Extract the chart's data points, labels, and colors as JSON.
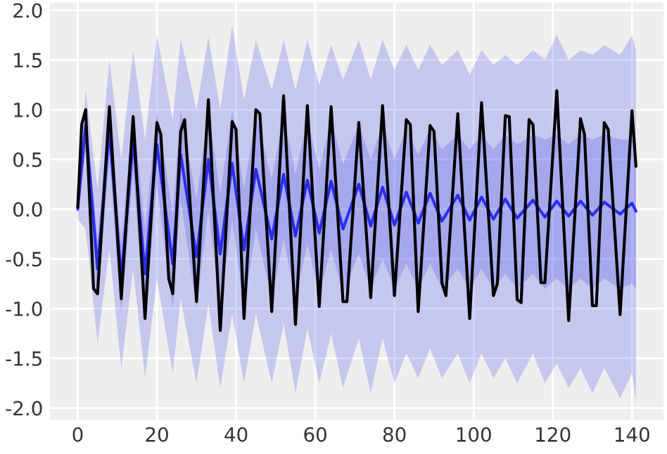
{
  "chart_data": {
    "type": "line",
    "xlim": [
      -7,
      148
    ],
    "ylim": [
      -2.12,
      2.08
    ],
    "xticks": [
      0,
      20,
      40,
      60,
      80,
      100,
      120,
      140
    ],
    "yticks": [
      {
        "value": -2,
        "label": "-2.0"
      },
      {
        "value": -1.5,
        "label": "-1.5"
      },
      {
        "value": -1,
        "label": "-1.0"
      },
      {
        "value": -0.5,
        "label": "-0.5"
      },
      {
        "value": 0,
        "label": "0.0"
      },
      {
        "value": 0.5,
        "label": "0.5"
      },
      {
        "value": 1,
        "label": "1.0"
      },
      {
        "value": 1.5,
        "label": "1.5"
      },
      {
        "value": 2,
        "label": "2.0"
      }
    ],
    "grid": true,
    "legend": false,
    "marker": "none",
    "line_style": "solid",
    "series": [
      {
        "color": "#2a2eec",
        "x": [
          0,
          2,
          5,
          8,
          11,
          14,
          17,
          20,
          24,
          26,
          30,
          33,
          36,
          39,
          42,
          45,
          49,
          52,
          55,
          58,
          61,
          64,
          67,
          71,
          74,
          77,
          80,
          83,
          86,
          89,
          92,
          96,
          99,
          102,
          105,
          108,
          111,
          115,
          118,
          121,
          124,
          127,
          130,
          133,
          137,
          140,
          141
        ],
        "values": [
          0.0,
          0.85,
          -0.6,
          0.8,
          -0.7,
          0.7,
          -0.65,
          0.65,
          -0.55,
          0.55,
          -0.48,
          0.5,
          -0.45,
          0.46,
          -0.41,
          0.4,
          -0.3,
          0.35,
          -0.27,
          0.29,
          -0.24,
          0.28,
          -0.2,
          0.25,
          -0.17,
          0.22,
          -0.16,
          0.17,
          -0.14,
          0.16,
          -0.12,
          0.14,
          -0.11,
          0.12,
          -0.1,
          0.1,
          -0.09,
          0.09,
          -0.08,
          0.08,
          -0.07,
          0.08,
          -0.06,
          0.07,
          -0.05,
          0.06,
          -0.02
        ],
        "upper": [
          0.1,
          1.2,
          0.2,
          1.5,
          0.5,
          1.6,
          0.7,
          1.75,
          0.9,
          1.72,
          1.0,
          1.73,
          1.0,
          1.85,
          1.1,
          1.7,
          1.2,
          1.7,
          1.2,
          1.7,
          1.25,
          1.65,
          1.3,
          1.7,
          1.3,
          1.7,
          1.4,
          1.65,
          1.4,
          1.65,
          1.45,
          1.6,
          1.35,
          1.6,
          1.45,
          1.55,
          1.45,
          1.6,
          1.5,
          1.75,
          1.5,
          1.6,
          1.55,
          1.65,
          1.55,
          1.75,
          1.6
        ],
        "lower": [
          -0.1,
          -0.2,
          -1.35,
          -0.4,
          -1.6,
          -0.6,
          -1.7,
          -0.7,
          -1.65,
          -0.9,
          -1.75,
          -0.95,
          -1.8,
          -1.05,
          -1.75,
          -1.05,
          -1.75,
          -1.15,
          -1.85,
          -1.2,
          -1.75,
          -1.25,
          -1.8,
          -1.3,
          -1.85,
          -1.3,
          -1.75,
          -1.45,
          -1.7,
          -1.4,
          -1.7,
          -1.45,
          -1.75,
          -1.45,
          -1.7,
          -1.5,
          -1.75,
          -1.45,
          -1.75,
          -1.55,
          -1.8,
          -1.6,
          -1.85,
          -1.6,
          -1.9,
          -1.65,
          -1.95
        ]
      },
      {
        "color": "#2a2eec",
        "x": [
          0,
          2,
          5,
          8,
          11,
          14,
          17,
          20,
          24,
          26,
          30,
          33,
          36,
          39,
          42,
          45,
          49,
          52,
          55,
          58,
          61,
          64,
          67,
          71,
          74,
          77,
          80,
          83,
          86,
          89,
          92,
          96,
          99,
          102,
          105,
          108,
          111,
          115,
          118,
          121,
          124,
          127,
          130,
          133,
          137,
          140,
          141
        ],
        "values": [
          null,
          null,
          null,
          null,
          null,
          null,
          null,
          null,
          null,
          null,
          null,
          null,
          null,
          null,
          null,
          null,
          null,
          null,
          null,
          null,
          null,
          null,
          null,
          null,
          null,
          null,
          null,
          null,
          null,
          null,
          null,
          null,
          null,
          null,
          null,
          null,
          null,
          null,
          null,
          null,
          null,
          null,
          null,
          null,
          null,
          null,
          null
        ],
        "upper": [
          0.05,
          1.0,
          -0.3,
          1.0,
          -0.35,
          1.0,
          -0.2,
          1.0,
          -0.05,
          1.0,
          0.1,
          1.0,
          0.15,
          1.0,
          0.2,
          0.95,
          0.3,
          0.95,
          0.35,
          0.9,
          0.4,
          0.9,
          0.45,
          0.85,
          0.5,
          0.85,
          0.5,
          0.8,
          0.55,
          0.8,
          0.6,
          0.75,
          0.6,
          0.75,
          0.6,
          0.75,
          0.65,
          0.75,
          0.7,
          0.75,
          0.65,
          0.75,
          0.7,
          0.75,
          0.7,
          0.7,
          0.65
        ],
        "lower": [
          -0.05,
          0.6,
          -0.9,
          0.5,
          -1.05,
          0.35,
          -1.1,
          0.25,
          -1.0,
          0.1,
          -1.0,
          0.0,
          -1.0,
          -0.1,
          -1.0,
          -0.2,
          -0.9,
          -0.3,
          -0.9,
          -0.35,
          -0.85,
          -0.4,
          -0.85,
          -0.45,
          -0.8,
          -0.5,
          -0.8,
          -0.55,
          -0.8,
          -0.55,
          -0.8,
          -0.6,
          -0.8,
          -0.6,
          -0.8,
          -0.65,
          -0.8,
          -0.65,
          -0.8,
          -0.7,
          -0.8,
          -0.7,
          -0.8,
          -0.7,
          -0.8,
          -0.75,
          -0.8
        ]
      },
      {
        "color": "#000000",
        "x": [
          0,
          1,
          2,
          4,
          5,
          8,
          11,
          14,
          17,
          20,
          21,
          23,
          24,
          26,
          27,
          30,
          33,
          36,
          39,
          40,
          42,
          45,
          46,
          49,
          52,
          55,
          58,
          61,
          64,
          67,
          68,
          71,
          74,
          77,
          80,
          83,
          84,
          86,
          89,
          90,
          92,
          93,
          96,
          99,
          102,
          105,
          106,
          108,
          109,
          111,
          112,
          114,
          115,
          117,
          118,
          121,
          124,
          127,
          128,
          130,
          131,
          133,
          134,
          137,
          140,
          141
        ],
        "values": [
          0.02,
          0.85,
          1.0,
          -0.8,
          -0.85,
          1.03,
          -0.9,
          0.93,
          -1.1,
          0.87,
          0.75,
          -0.7,
          -0.85,
          0.78,
          0.9,
          -0.93,
          1.1,
          -1.22,
          0.88,
          0.8,
          -1.1,
          1.0,
          0.96,
          -1.03,
          1.14,
          -1.16,
          1.04,
          -0.98,
          1.03,
          -0.93,
          -0.93,
          0.87,
          -0.89,
          1.04,
          -0.87,
          0.9,
          0.85,
          -1.03,
          0.84,
          0.78,
          -0.74,
          -0.87,
          0.96,
          -1.1,
          1.07,
          -0.87,
          -0.75,
          0.94,
          0.93,
          -0.91,
          -0.94,
          0.9,
          0.85,
          -0.74,
          -0.74,
          1.19,
          -1.12,
          0.91,
          0.75,
          -0.97,
          -0.97,
          0.87,
          0.8,
          -1.06,
          0.99,
          0.43
        ]
      }
    ]
  }
}
